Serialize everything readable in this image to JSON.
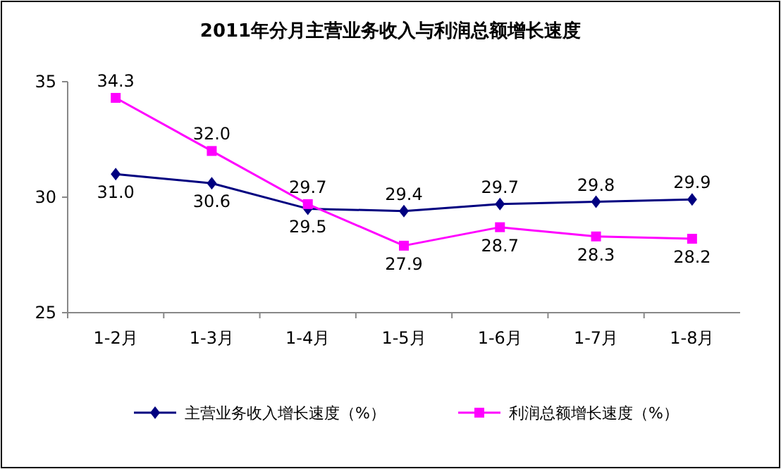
{
  "chart_data": {
    "type": "line",
    "title": "2011年分月主营业务收入与利润总额增长速度",
    "categories": [
      "1-2月",
      "1-3月",
      "1-4月",
      "1-5月",
      "1-6月",
      "1-7月",
      "1-8月"
    ],
    "series": [
      {
        "name": "主营业务收入增长速度（%）",
        "color": "#000080",
        "marker": "diamond",
        "values": [
          31.0,
          30.6,
          29.5,
          29.4,
          29.7,
          29.8,
          29.9
        ],
        "value_labels": [
          "31.0",
          "30.6",
          "29.5",
          "29.4",
          "29.7",
          "29.8",
          "29.9"
        ]
      },
      {
        "name": "利润总额增长速度（%）",
        "color": "#ff00ff",
        "marker": "square",
        "values": [
          34.3,
          32.0,
          29.7,
          27.9,
          28.7,
          28.3,
          28.2
        ],
        "value_labels": [
          "34.3",
          "32.0",
          "29.7",
          "27.9",
          "28.7",
          "28.3",
          "28.2"
        ]
      }
    ],
    "ylim": [
      25,
      35
    ],
    "yticks": [
      25,
      30,
      35
    ],
    "grid": false,
    "legend": "bottom",
    "line_style": "solid"
  }
}
